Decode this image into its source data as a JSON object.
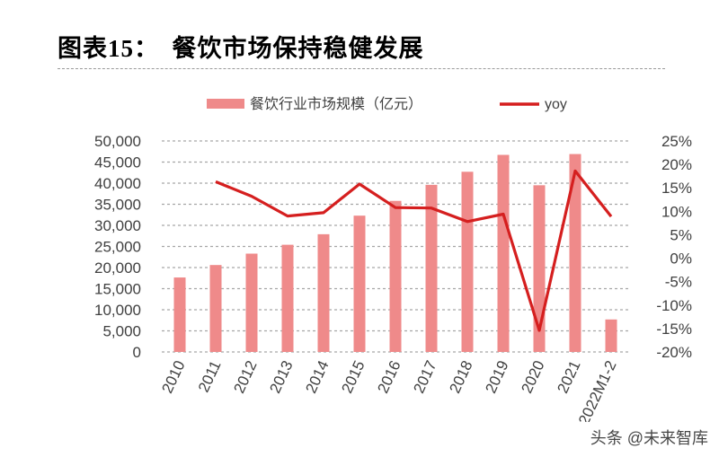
{
  "title": "图表15：　餐饮市场保持稳健发展",
  "watermark": {
    "text": "头条 @未来智库",
    "icon": "wechat-icon"
  },
  "colors": {
    "bar": "#ef8a8a",
    "line": "#d51f1f",
    "grid": "#a6a6a6",
    "text": "#404040"
  },
  "chart_data": {
    "type": "bar",
    "categories": [
      "2010",
      "2011",
      "2012",
      "2013",
      "2014",
      "2015",
      "2016",
      "2017",
      "2018",
      "2019",
      "2020",
      "2021",
      "2022M1-2"
    ],
    "series": [
      {
        "name": "餐饮行业市场规模（亿元）",
        "type": "bar",
        "axis": "left",
        "values": [
          17650,
          20600,
          23300,
          25400,
          27900,
          32300,
          35800,
          39600,
          42700,
          46700,
          39500,
          46900,
          7700
        ]
      },
      {
        "name": "yoy",
        "type": "line",
        "axis": "right",
        "unit": "%",
        "values": [
          null,
          16.3,
          13.2,
          9.0,
          9.7,
          15.8,
          10.8,
          10.7,
          7.8,
          9.4,
          -15.4,
          18.6,
          8.9
        ]
      }
    ],
    "y_left": {
      "min": 0,
      "max": 50000,
      "ticks": [
        "0",
        "5,000",
        "10,000",
        "15,000",
        "20,000",
        "25,000",
        "30,000",
        "35,000",
        "40,000",
        "45,000",
        "50,000"
      ]
    },
    "y_right": {
      "min": -20,
      "max": 25,
      "ticks": [
        "-20%",
        "-15%",
        "-10%",
        "-5%",
        "0%",
        "5%",
        "10%",
        "15%",
        "20%",
        "25%"
      ]
    },
    "grid": true,
    "legend_position": "top"
  }
}
